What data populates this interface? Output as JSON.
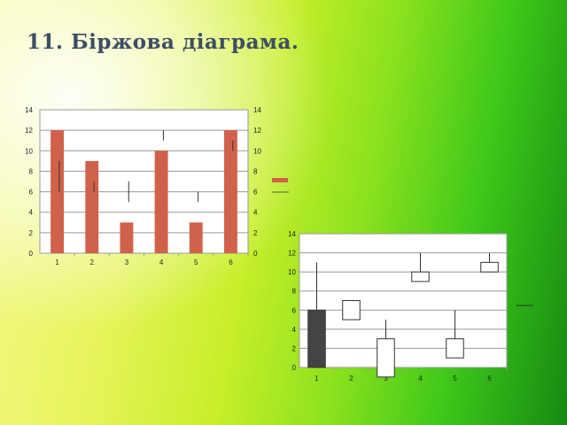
{
  "title": "11. Біржова діаграма.",
  "colors": {
    "bar": "#d0614a",
    "legend_bar": "#d0614a",
    "hilo": "#333333",
    "candle_down": "#444444",
    "candle_up": "#ffffff",
    "grid": "#9a9a9a"
  },
  "chart_data": [
    {
      "type": "bar",
      "title": "",
      "categories": [
        "1",
        "2",
        "3",
        "4",
        "5",
        "6"
      ],
      "series": [
        {
          "type": "bar",
          "values": [
            12,
            9,
            3,
            10,
            3,
            12
          ]
        },
        {
          "type": "hi-lo",
          "high": [
            9,
            7,
            7,
            12,
            6,
            11
          ],
          "low": [
            6,
            6,
            5,
            11,
            5,
            10
          ]
        }
      ],
      "ylim": [
        0,
        14
      ],
      "yticks": [
        "0",
        "2",
        "4",
        "6",
        "8",
        "10",
        "12",
        "14"
      ],
      "secondary_yticks": [
        "0",
        "2",
        "4",
        "6",
        "8",
        "10",
        "12",
        "14"
      ],
      "grid": true,
      "legend": "right"
    },
    {
      "type": "candlestick",
      "title": "",
      "categories": [
        "1",
        "2",
        "3",
        "4",
        "5",
        "6"
      ],
      "open": [
        6,
        5,
        -1,
        9,
        1,
        10
      ],
      "close": [
        0,
        7,
        3,
        10,
        3,
        11
      ],
      "high": [
        11,
        7,
        5,
        12,
        6,
        12
      ],
      "low": [
        0,
        5,
        -1,
        9,
        1,
        10
      ],
      "ylim": [
        0,
        14
      ],
      "yticks": [
        "0",
        "2",
        "4",
        "6",
        "8",
        "10",
        "12",
        "14"
      ],
      "grid": true,
      "legend": "right"
    }
  ]
}
